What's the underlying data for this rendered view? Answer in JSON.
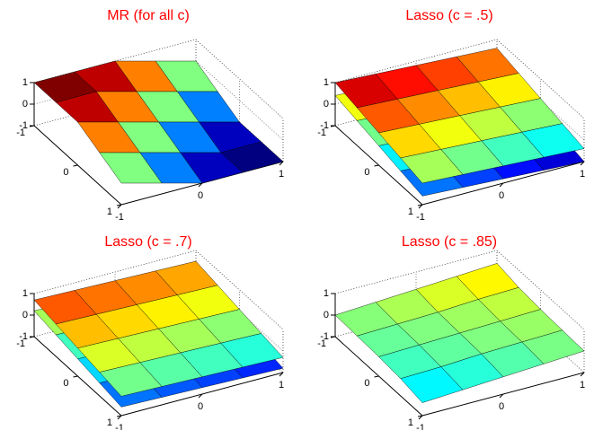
{
  "chart_data": [
    {
      "type": "surface",
      "title": "MR (for all c)",
      "colormap": "jet",
      "x": [
        -1,
        -0.5,
        0,
        0.5,
        1
      ],
      "y": [
        -1,
        -0.5,
        0,
        0.5,
        1
      ],
      "series": [
        {
          "z": [
            [
              1,
              1,
              1,
              0.5,
              0
            ],
            [
              1,
              1,
              0.5,
              0,
              -0.5
            ],
            [
              1,
              0.5,
              0,
              -0.5,
              -1
            ],
            [
              0.5,
              0,
              -0.5,
              -1,
              -1
            ],
            [
              0,
              -0.5,
              -1,
              -1,
              -1
            ]
          ]
        }
      ],
      "xlim": [
        -1,
        1
      ],
      "ylim": [
        -1,
        1
      ],
      "zlim": [
        -1,
        1
      ],
      "xticks": [
        -1,
        0,
        1
      ],
      "yticks": [
        -1,
        0,
        1
      ],
      "zticks": [
        -1,
        0,
        1
      ]
    },
    {
      "type": "surface",
      "title": "Lasso (c = .5)",
      "colormap": "jet",
      "x": [
        -1,
        -0.5,
        0,
        0.5,
        1
      ],
      "y": [
        -1,
        -0.5,
        0,
        0.5,
        1
      ],
      "series": [
        {
          "z": [
            [
              1.0,
              0.9,
              0.8,
              0.7,
              0.6
            ],
            [
              0.75,
              0.65,
              0.55,
              0.45,
              0.35
            ],
            [
              0.5,
              0.4,
              0.3,
              0.2,
              0.1
            ],
            [
              0.25,
              0.15,
              0.05,
              -0.05,
              -0.15
            ],
            [
              0,
              -0.1,
              -0.2,
              -0.3,
              -0.4
            ]
          ]
        },
        {
          "z": [
            [
              0.4,
              0.3,
              0.2,
              0.1,
              0
            ],
            [
              0.15,
              0.05,
              -0.05,
              -0.15,
              -0.25
            ],
            [
              -0.1,
              -0.2,
              -0.3,
              -0.4,
              -0.5
            ],
            [
              -0.35,
              -0.45,
              -0.55,
              -0.65,
              -0.75
            ],
            [
              -0.6,
              -0.7,
              -0.8,
              -0.9,
              -1.0
            ]
          ]
        }
      ],
      "xlim": [
        -1,
        1
      ],
      "ylim": [
        -1,
        1
      ],
      "zlim": [
        -1,
        1
      ],
      "xticks": [
        -1,
        0,
        1
      ],
      "yticks": [
        -1,
        0,
        1
      ],
      "zticks": [
        -1,
        0,
        1
      ]
    },
    {
      "type": "surface",
      "title": "Lasso (c = .7)",
      "colormap": "jet",
      "x": [
        -1,
        -0.5,
        0,
        0.5,
        1
      ],
      "y": [
        -1,
        -0.5,
        0,
        0.5,
        1
      ],
      "series": [
        {
          "z": [
            [
              0.7,
              0.65,
              0.6,
              0.55,
              0.5
            ],
            [
              0.5,
              0.45,
              0.4,
              0.35,
              0.3
            ],
            [
              0.3,
              0.25,
              0.2,
              0.15,
              0.1
            ],
            [
              0.1,
              0.05,
              0,
              -0.05,
              -0.1
            ],
            [
              -0.1,
              -0.15,
              -0.2,
              -0.25,
              -0.3
            ]
          ]
        },
        {
          "z": [
            [
              0.2,
              0.15,
              0.1,
              0.05,
              0
            ],
            [
              0,
              -0.05,
              -0.1,
              -0.15,
              -0.2
            ],
            [
              -0.2,
              -0.25,
              -0.3,
              -0.35,
              -0.4
            ],
            [
              -0.4,
              -0.45,
              -0.5,
              -0.55,
              -0.6
            ],
            [
              -0.6,
              -0.65,
              -0.7,
              -0.75,
              -0.8
            ]
          ]
        }
      ],
      "xlim": [
        -1,
        1
      ],
      "ylim": [
        -1,
        1
      ],
      "zlim": [
        -1,
        1
      ],
      "xticks": [
        -1,
        0,
        1
      ],
      "yticks": [
        -1,
        0,
        1
      ],
      "zticks": [
        -1,
        0,
        1
      ]
    },
    {
      "type": "surface",
      "title": "Lasso (c = .85)",
      "colormap": "jet",
      "x": [
        -1,
        -0.5,
        0,
        0.5,
        1
      ],
      "y": [
        -1,
        -0.5,
        0,
        0.5,
        1
      ],
      "series": [
        {
          "z": [
            [
              0,
              0.1,
              0.2,
              0.3,
              0.4
            ],
            [
              -0.05,
              0,
              0.05,
              0.15,
              0.2
            ],
            [
              -0.1,
              -0.05,
              0,
              0.05,
              0.1
            ],
            [
              -0.2,
              -0.15,
              -0.05,
              0,
              0.05
            ],
            [
              -0.4,
              -0.3,
              -0.2,
              -0.1,
              0
            ]
          ]
        }
      ],
      "xlim": [
        -1,
        1
      ],
      "ylim": [
        -1,
        1
      ],
      "zlim": [
        -1,
        1
      ],
      "xticks": [
        -1,
        0,
        1
      ],
      "yticks": [
        -1,
        0,
        1
      ],
      "zticks": [
        -1,
        0,
        1
      ]
    }
  ]
}
